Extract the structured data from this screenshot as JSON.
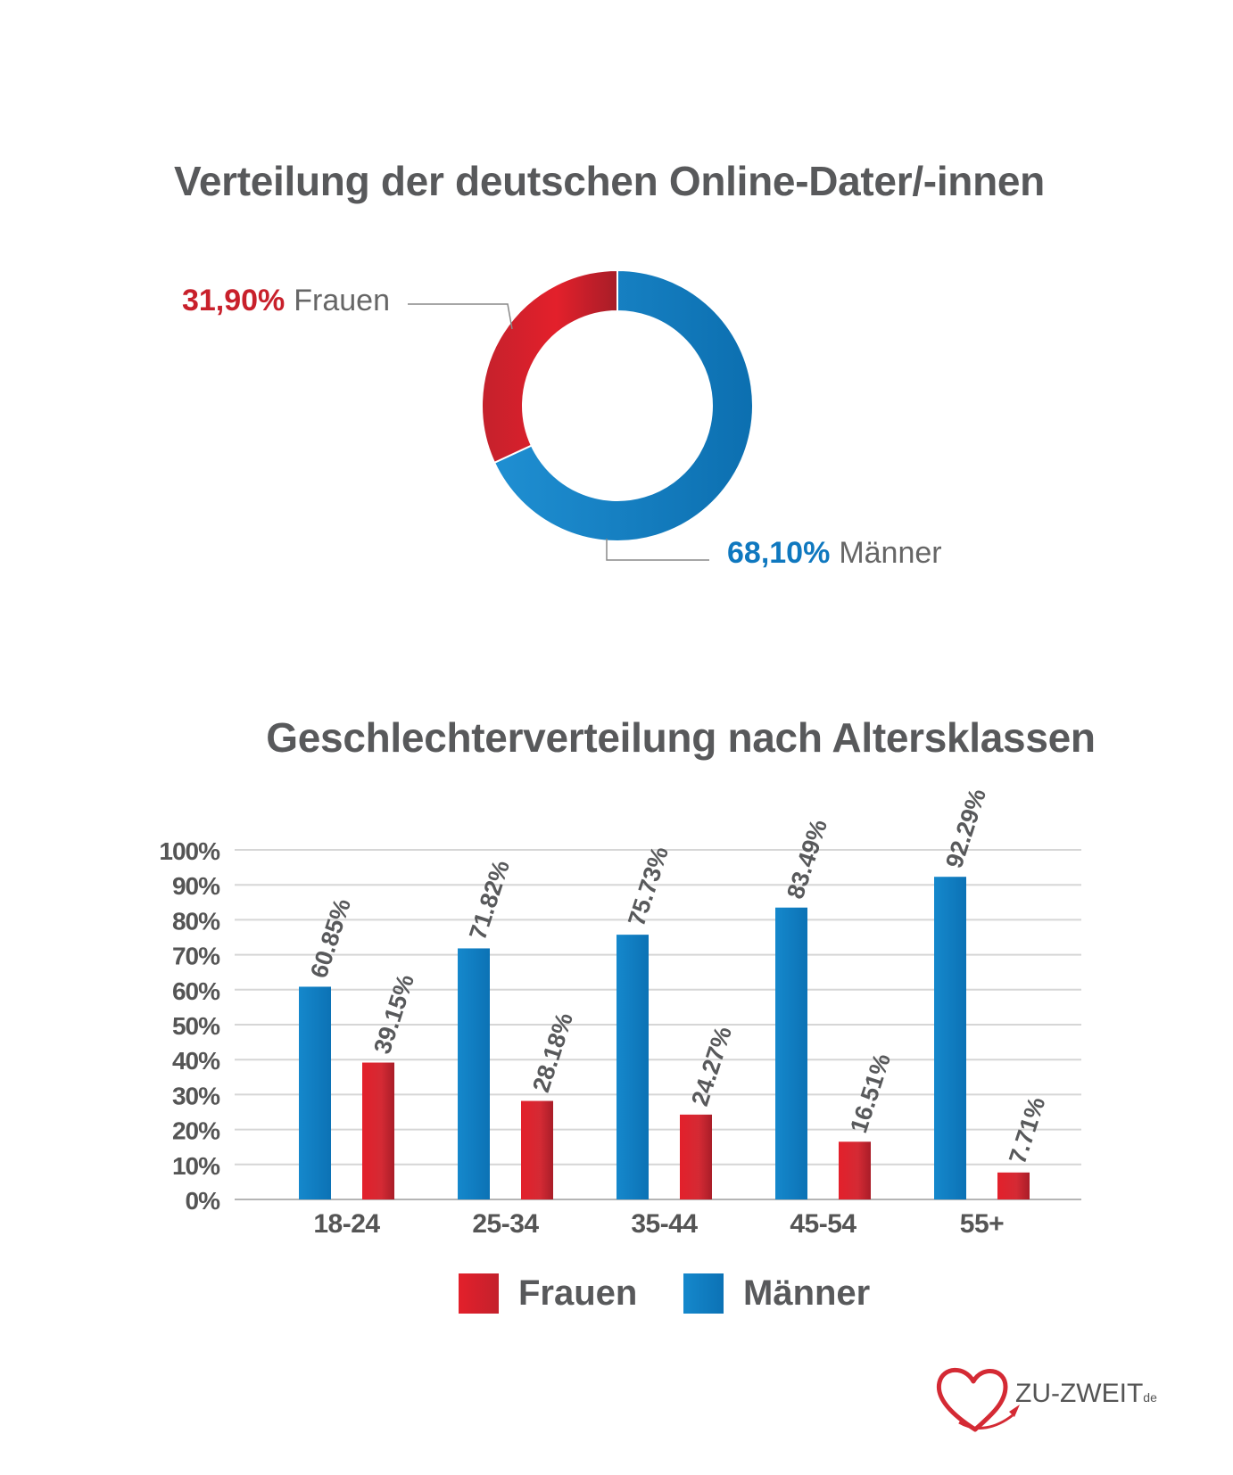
{
  "chart_data": [
    {
      "type": "pie",
      "title": "Verteilung der deutschen Online-Dater/-innen",
      "slices": [
        {
          "name": "Frauen",
          "value": 31.9,
          "label": "31,90%",
          "color": "#d42a34"
        },
        {
          "name": "Männer",
          "value": 68.1,
          "label": "68,10%",
          "color": "#0f78bf"
        }
      ]
    },
    {
      "type": "bar",
      "title": "Geschlechterverteilung nach Altersklassen",
      "categories": [
        "18-24",
        "25-34",
        "35-44",
        "45-54",
        "55+"
      ],
      "ylim": [
        0,
        100
      ],
      "yticks": [
        "0%",
        "10%",
        "20%",
        "30%",
        "40%",
        "50%",
        "60%",
        "70%",
        "80%",
        "90%",
        "100%"
      ],
      "grid": true,
      "legend": "bottom",
      "series": [
        {
          "name": "Männer",
          "color": "#0f78bf",
          "values": [
            60.85,
            71.82,
            75.73,
            83.49,
            92.29
          ],
          "labels": [
            "60.85%",
            "71.82%",
            "75.73%",
            "83.49%",
            "92.29%"
          ]
        },
        {
          "name": "Frauen",
          "color": "#d42a34",
          "values": [
            39.15,
            28.18,
            24.27,
            16.51,
            7.71
          ],
          "labels": [
            "39.15%",
            "28.18%",
            "24.27%",
            "16.51%",
            "7.71%"
          ]
        }
      ]
    }
  ],
  "legend": {
    "frauen": "Frauen",
    "maenner": "Männer"
  },
  "logo": {
    "name": "ZU-ZWEIT",
    "suffix": "de"
  }
}
